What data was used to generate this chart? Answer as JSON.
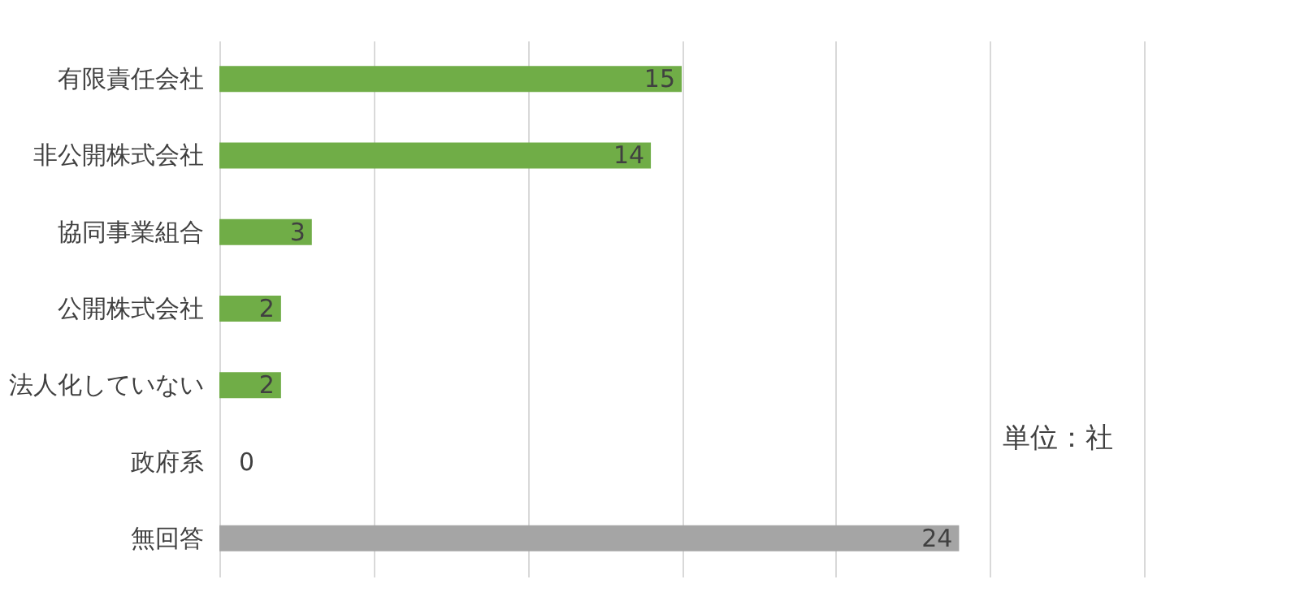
{
  "chart_data": {
    "type": "bar",
    "orientation": "horizontal",
    "categories": [
      "有限責任会社",
      "非公開株式会社",
      "協同事業組合",
      "公開株式会社",
      "法人化していない",
      "政府系",
      "無回答"
    ],
    "values": [
      15,
      14,
      3,
      2,
      2,
      0,
      24
    ],
    "colors": [
      "#70ad47",
      "#70ad47",
      "#70ad47",
      "#70ad47",
      "#70ad47",
      "#70ad47",
      "#a5a5a5"
    ],
    "xlim": [
      0,
      30
    ],
    "xticks": [
      {
        "value": 0,
        "label": null
      },
      {
        "value": 5,
        "label": null
      },
      {
        "value": 10,
        "label": null
      },
      {
        "value": 15,
        "label": null
      },
      {
        "value": 20,
        "label": null
      },
      {
        "value": 25,
        "label": null
      },
      {
        "value": 30,
        "label": null
      }
    ],
    "tick_labels": "y",
    "grid": "x",
    "data_labels": true,
    "annotations": [
      "単位：社"
    ]
  }
}
